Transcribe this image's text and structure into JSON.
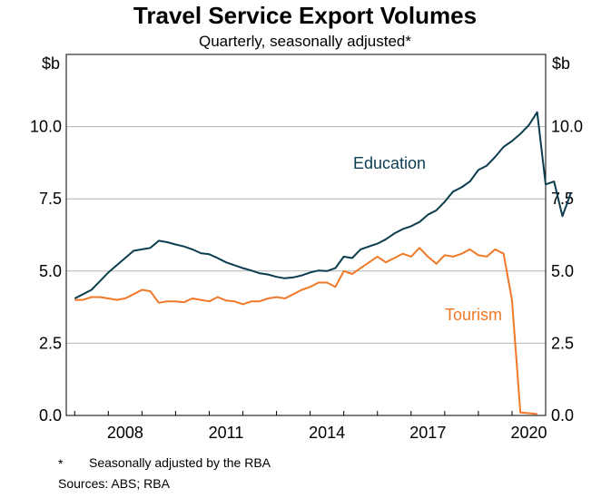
{
  "chart_data": {
    "type": "line",
    "title": "Travel Service Export Volumes",
    "subtitle": "Quarterly, seasonally adjusted*",
    "ylabel_left": "$b",
    "ylabel_right": "$b",
    "ylim": [
      0,
      12.5
    ],
    "y_ticks": [
      0,
      2.5,
      5,
      7.5,
      10
    ],
    "y_tick_labels": [
      "0.0",
      "2.5",
      "5.0",
      "7.5",
      "10.0"
    ],
    "xlim": [
      2006.75,
      2021.0
    ],
    "x_ticks": [
      2008,
      2011,
      2014,
      2017,
      2020
    ],
    "x_tick_labels": [
      "2008",
      "2011",
      "2014",
      "2017",
      "2020"
    ],
    "grid": true,
    "series": [
      {
        "name": "Education",
        "color": "#0b3d4f",
        "values": [
          [
            2007.0,
            4.05
          ],
          [
            2007.25,
            4.2
          ],
          [
            2007.5,
            4.35
          ],
          [
            2007.75,
            4.65
          ],
          [
            2008.0,
            4.95
          ],
          [
            2008.25,
            5.2
          ],
          [
            2008.5,
            5.45
          ],
          [
            2008.75,
            5.7
          ],
          [
            2009.0,
            5.75
          ],
          [
            2009.25,
            5.8
          ],
          [
            2009.5,
            6.05
          ],
          [
            2009.75,
            6.0
          ],
          [
            2010.0,
            5.92
          ],
          [
            2010.25,
            5.85
          ],
          [
            2010.5,
            5.75
          ],
          [
            2010.75,
            5.62
          ],
          [
            2011.0,
            5.58
          ],
          [
            2011.25,
            5.45
          ],
          [
            2011.5,
            5.3
          ],
          [
            2011.75,
            5.2
          ],
          [
            2012.0,
            5.1
          ],
          [
            2012.25,
            5.02
          ],
          [
            2012.5,
            4.92
          ],
          [
            2012.75,
            4.88
          ],
          [
            2013.0,
            4.8
          ],
          [
            2013.25,
            4.75
          ],
          [
            2013.5,
            4.78
          ],
          [
            2013.75,
            4.85
          ],
          [
            2014.0,
            4.95
          ],
          [
            2014.25,
            5.02
          ],
          [
            2014.5,
            5.0
          ],
          [
            2014.75,
            5.1
          ],
          [
            2015.0,
            5.5
          ],
          [
            2015.25,
            5.45
          ],
          [
            2015.5,
            5.75
          ],
          [
            2015.75,
            5.85
          ],
          [
            2016.0,
            5.95
          ],
          [
            2016.25,
            6.1
          ],
          [
            2016.5,
            6.3
          ],
          [
            2016.75,
            6.45
          ],
          [
            2017.0,
            6.55
          ],
          [
            2017.25,
            6.7
          ],
          [
            2017.5,
            6.95
          ],
          [
            2017.75,
            7.1
          ],
          [
            2018.0,
            7.4
          ],
          [
            2018.25,
            7.75
          ],
          [
            2018.5,
            7.9
          ],
          [
            2018.75,
            8.1
          ],
          [
            2019.0,
            8.5
          ],
          [
            2019.25,
            8.65
          ],
          [
            2019.5,
            8.95
          ],
          [
            2019.75,
            9.3
          ],
          [
            2020.0,
            9.5
          ],
          [
            2020.25,
            9.75
          ],
          [
            2020.5,
            10.05
          ],
          [
            2020.75,
            10.5
          ],
          [
            2021.0,
            8.0
          ],
          [
            2021.25,
            8.1
          ],
          [
            2021.5,
            6.9
          ],
          [
            2021.75,
            7.7
          ]
        ]
      },
      {
        "name": "Tourism",
        "color": "#f07826",
        "values": [
          [
            2007.0,
            4.0
          ],
          [
            2007.25,
            4.0
          ],
          [
            2007.5,
            4.1
          ],
          [
            2007.75,
            4.1
          ],
          [
            2008.0,
            4.05
          ],
          [
            2008.25,
            4.0
          ],
          [
            2008.5,
            4.05
          ],
          [
            2008.75,
            4.2
          ],
          [
            2009.0,
            4.35
          ],
          [
            2009.25,
            4.3
          ],
          [
            2009.5,
            3.9
          ],
          [
            2009.75,
            3.95
          ],
          [
            2010.0,
            3.95
          ],
          [
            2010.25,
            3.92
          ],
          [
            2010.5,
            4.05
          ],
          [
            2010.75,
            4.0
          ],
          [
            2011.0,
            3.95
          ],
          [
            2011.25,
            4.1
          ],
          [
            2011.5,
            3.98
          ],
          [
            2011.75,
            3.95
          ],
          [
            2012.0,
            3.85
          ],
          [
            2012.25,
            3.95
          ],
          [
            2012.5,
            3.95
          ],
          [
            2012.75,
            4.05
          ],
          [
            2013.0,
            4.1
          ],
          [
            2013.25,
            4.05
          ],
          [
            2013.5,
            4.2
          ],
          [
            2013.75,
            4.35
          ],
          [
            2014.0,
            4.45
          ],
          [
            2014.25,
            4.6
          ],
          [
            2014.5,
            4.6
          ],
          [
            2014.75,
            4.45
          ],
          [
            2015.0,
            5.0
          ],
          [
            2015.25,
            4.9
          ],
          [
            2015.5,
            5.1
          ],
          [
            2015.75,
            5.3
          ],
          [
            2016.0,
            5.5
          ],
          [
            2016.25,
            5.3
          ],
          [
            2016.5,
            5.45
          ],
          [
            2016.75,
            5.6
          ],
          [
            2017.0,
            5.5
          ],
          [
            2017.25,
            5.8
          ],
          [
            2017.5,
            5.5
          ],
          [
            2017.75,
            5.25
          ],
          [
            2018.0,
            5.55
          ],
          [
            2018.25,
            5.5
          ],
          [
            2018.5,
            5.6
          ],
          [
            2018.75,
            5.75
          ],
          [
            2019.0,
            5.55
          ],
          [
            2019.25,
            5.5
          ],
          [
            2019.5,
            5.75
          ],
          [
            2019.75,
            5.6
          ],
          [
            2020.0,
            4.0
          ],
          [
            2020.25,
            0.1
          ],
          [
            2020.5,
            0.08
          ],
          [
            2020.75,
            0.05
          ]
        ]
      }
    ],
    "annotations": [
      {
        "text": "Education",
        "series": "Education"
      },
      {
        "text": "Tourism",
        "series": "Tourism"
      }
    ]
  },
  "footnotes": {
    "asterisk": "*",
    "note": "Seasonally adjusted by the RBA",
    "sources": "Sources: ABS; RBA"
  }
}
